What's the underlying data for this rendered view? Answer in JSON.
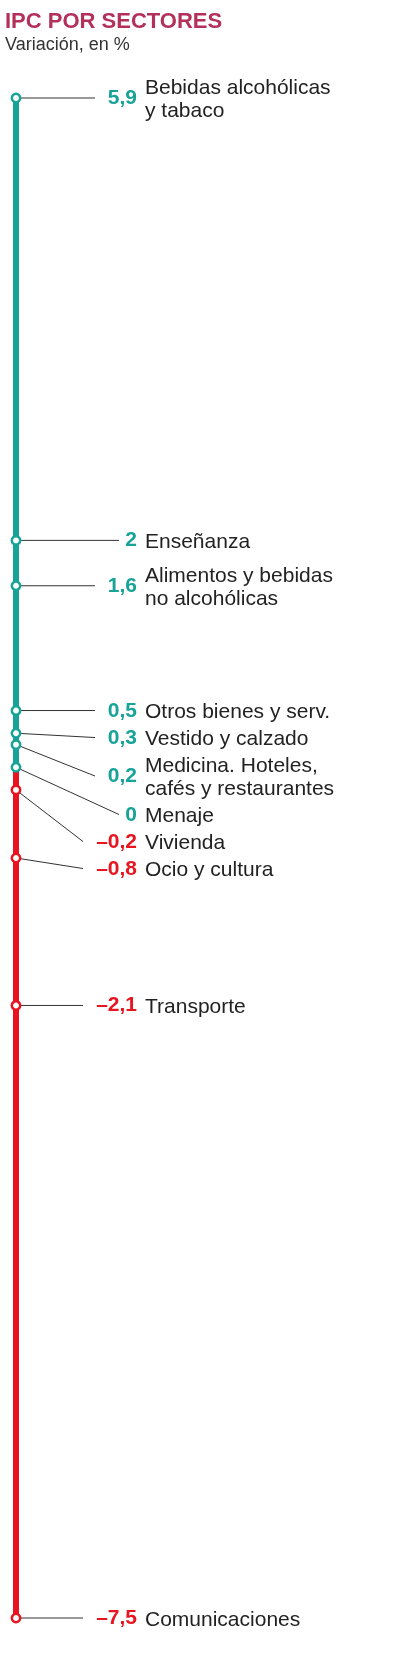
{
  "chart_data": {
    "type": "other",
    "title": "IPC POR SECTORES",
    "subtitle": "Variación, en %",
    "categories": [
      "Bebidas alcohólicas y tabaco",
      "Enseñanza",
      "Alimentos y bebidas no alcohólicas",
      "Otros bienes y serv.",
      "Vestido y calzado",
      "Medicina. Hoteles, cafés y restaurantes",
      "Menaje",
      "Vivienda",
      "Ocio y cultura",
      "Transporte",
      "Comunicaciones"
    ],
    "values": [
      5.9,
      2,
      1.6,
      0.5,
      0.3,
      0.2,
      0,
      -0.2,
      -0.8,
      -2.1,
      -7.5
    ],
    "value_labels": [
      "5,9",
      "2",
      "1,6",
      "0,5",
      "0,3",
      "0,2",
      "0",
      "–0,2",
      "–0,8",
      "–2,1",
      "–7,5"
    ],
    "colors": [
      "#18a398",
      "#18a398",
      "#18a398",
      "#18a398",
      "#18a398",
      "#18a398",
      "#18a398",
      "#e8141f",
      "#e8141f",
      "#e8141f",
      "#e8141f"
    ]
  }
}
